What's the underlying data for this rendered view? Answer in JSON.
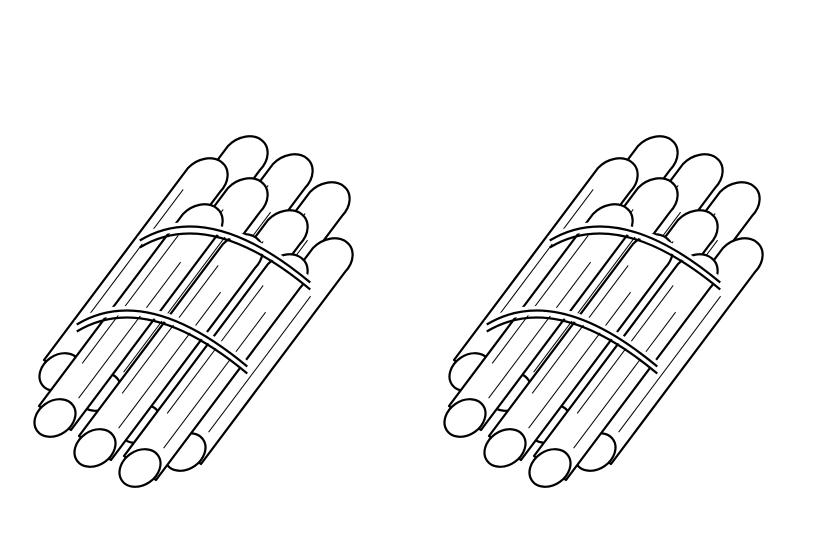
{
  "image": {
    "background_color": "#ffffff",
    "line_color": "#000000",
    "fill_color": "#ffffff"
  },
  "bundles": [
    {
      "object": "bundle-of-sticks",
      "stick_count": 10,
      "band_count": 2
    },
    {
      "object": "bundle-of-sticks",
      "stick_count": 10,
      "band_count": 2
    }
  ]
}
